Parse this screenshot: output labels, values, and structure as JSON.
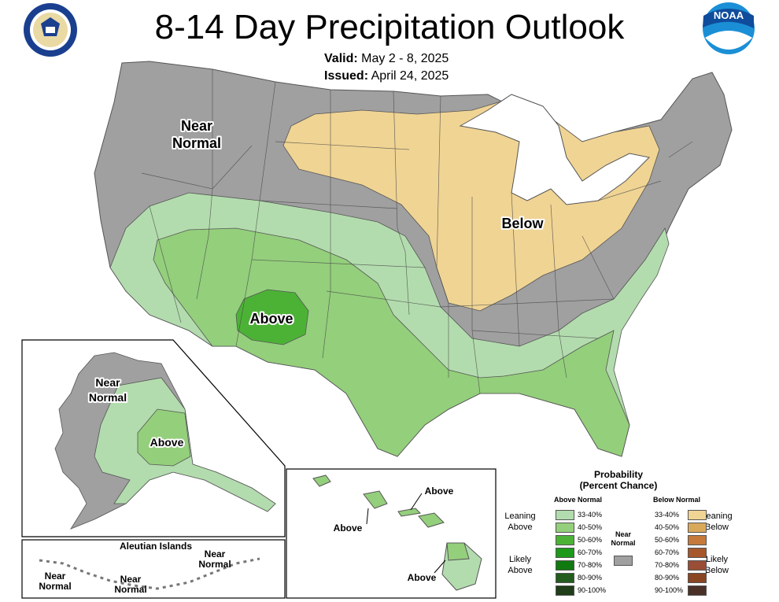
{
  "header": {
    "title": "8-14 Day Precipitation Outlook",
    "valid_label": "Valid:",
    "valid_value": "May 2 - 8, 2025",
    "issued_label": "Issued:",
    "issued_value": "April 24, 2025"
  },
  "logos": {
    "left": "department-of-commerce-seal",
    "right": "noaa-logo",
    "noaa_text": "NOAA"
  },
  "map": {
    "conus_labels": {
      "near_normal": [
        "Near",
        "Normal"
      ],
      "below": "Below",
      "above": "Above"
    },
    "alaska_labels": {
      "near_normal": [
        "Near",
        "Normal"
      ],
      "above": "Above"
    },
    "aleutian": {
      "title": "Aleutian Islands",
      "labels": [
        [
          "Near",
          "Normal"
        ],
        [
          "Near",
          "Normal"
        ],
        [
          "Near",
          "Normal"
        ]
      ]
    },
    "hawaii_labels": [
      "Above",
      "Above",
      "Above"
    ]
  },
  "colors": {
    "near_normal": "#a0a0a0",
    "above_33_40": "#b3dcae",
    "above_40_50": "#94cf7c",
    "above_50_60": "#4cb236",
    "above_60_70": "#1d9a1a",
    "above_70_80": "#107a10",
    "above_80_90": "#235c1e",
    "above_90_100": "#1e3d18",
    "below_33_40": "#f0d494",
    "below_40_50": "#d9a95b",
    "below_50_60": "#c57a3b",
    "below_60_70": "#a6572b",
    "below_70_80": "#9a4e35",
    "below_80_90": "#8a4523",
    "below_90_100": "#4a3128",
    "great_lakes": "#ffffff"
  },
  "legend": {
    "title": "Probability",
    "subtitle": "(Percent Chance)",
    "above_header": "Above Normal",
    "below_header": "Below Normal",
    "near_normal": [
      "Near",
      "Normal"
    ],
    "leaning_above": [
      "Leaning",
      "Above"
    ],
    "likely_above": [
      "Likely",
      "Above"
    ],
    "leaning_below": [
      "Leaning",
      "Below"
    ],
    "likely_below": [
      "Likely",
      "Below"
    ],
    "above_ranges": [
      "33-40%",
      "40-50%",
      "50-60%",
      "60-70%",
      "70-80%",
      "80-90%",
      "90-100%"
    ],
    "below_ranges": [
      "33-40%",
      "40-50%",
      "50-60%",
      "60-70%",
      "70-80%",
      "80-90%",
      "90-100%"
    ]
  }
}
